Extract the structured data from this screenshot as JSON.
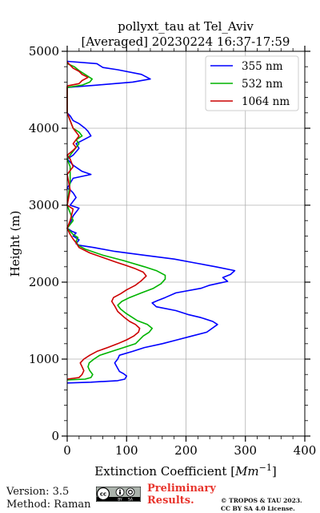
{
  "chart_data": {
    "type": "line",
    "title_line1": "pollyxt_tau at Tel_Aviv",
    "title_line2": "[Averaged] 20230224 16:37-17:59",
    "xlabel_text": "Extinction Coefficient [",
    "xlabel_unit": "Mm",
    "xlabel_exp": "−1",
    "xlabel_close": "]",
    "ylabel": "Height (m)",
    "xlim": [
      0,
      400
    ],
    "ylim": [
      0,
      5000
    ],
    "xticks": [
      0,
      100,
      200,
      300,
      400
    ],
    "yticks": [
      0,
      1000,
      2000,
      3000,
      4000,
      5000
    ],
    "grid": true,
    "legend_position": "top-right",
    "series": [
      {
        "name": "355 nm",
        "color": "#0000ff",
        "points": [
          [
            0,
            690
          ],
          [
            40,
            700
          ],
          [
            85,
            720
          ],
          [
            97,
            740
          ],
          [
            100,
            780
          ],
          [
            95,
            810
          ],
          [
            88,
            840
          ],
          [
            85,
            880
          ],
          [
            80,
            950
          ],
          [
            85,
            1000
          ],
          [
            88,
            1050
          ],
          [
            110,
            1100
          ],
          [
            130,
            1150
          ],
          [
            160,
            1200
          ],
          [
            185,
            1250
          ],
          [
            210,
            1300
          ],
          [
            235,
            1350
          ],
          [
            253,
            1450
          ],
          [
            245,
            1490
          ],
          [
            225,
            1540
          ],
          [
            203,
            1580
          ],
          [
            183,
            1630
          ],
          [
            150,
            1680
          ],
          [
            143,
            1730
          ],
          [
            152,
            1760
          ],
          [
            165,
            1800
          ],
          [
            183,
            1860
          ],
          [
            225,
            1920
          ],
          [
            240,
            1960
          ],
          [
            270,
            2010
          ],
          [
            262,
            2060
          ],
          [
            275,
            2100
          ],
          [
            282,
            2150
          ],
          [
            250,
            2200
          ],
          [
            215,
            2250
          ],
          [
            180,
            2300
          ],
          [
            130,
            2350
          ],
          [
            80,
            2400
          ],
          [
            45,
            2450
          ],
          [
            20,
            2480
          ],
          [
            15,
            2500
          ],
          [
            20,
            2550
          ],
          [
            10,
            2600
          ],
          [
            15,
            2640
          ],
          [
            8,
            2660
          ],
          [
            0,
            2700
          ],
          [
            5,
            2760
          ],
          [
            10,
            2860
          ],
          [
            20,
            2960
          ],
          [
            5,
            3000
          ],
          [
            15,
            3100
          ],
          [
            10,
            3160
          ],
          [
            5,
            3200
          ],
          [
            0,
            3220
          ],
          [
            10,
            3350
          ],
          [
            40,
            3400
          ],
          [
            25,
            3440
          ],
          [
            10,
            3520
          ],
          [
            0,
            3600
          ],
          [
            10,
            3650
          ],
          [
            20,
            3740
          ],
          [
            15,
            3800
          ],
          [
            30,
            3860
          ],
          [
            40,
            3900
          ],
          [
            35,
            3960
          ],
          [
            30,
            4000
          ],
          [
            20,
            4060
          ],
          [
            10,
            4100
          ],
          [
            5,
            4160
          ],
          [
            0,
            4200
          ],
          [
            0,
            4530
          ],
          [
            50,
            4560
          ],
          [
            110,
            4600
          ],
          [
            140,
            4640
          ],
          [
            125,
            4700
          ],
          [
            85,
            4760
          ],
          [
            60,
            4790
          ],
          [
            50,
            4840
          ],
          [
            0,
            4870
          ]
        ]
      },
      {
        "name": "532 nm",
        "color": "#00b400",
        "points": [
          [
            0,
            730
          ],
          [
            30,
            740
          ],
          [
            40,
            760
          ],
          [
            43,
            800
          ],
          [
            38,
            850
          ],
          [
            35,
            900
          ],
          [
            37,
            950
          ],
          [
            45,
            1000
          ],
          [
            55,
            1050
          ],
          [
            75,
            1100
          ],
          [
            95,
            1150
          ],
          [
            115,
            1200
          ],
          [
            128,
            1300
          ],
          [
            138,
            1350
          ],
          [
            143,
            1400
          ],
          [
            135,
            1450
          ],
          [
            118,
            1500
          ],
          [
            110,
            1540
          ],
          [
            98,
            1600
          ],
          [
            90,
            1650
          ],
          [
            85,
            1700
          ],
          [
            92,
            1750
          ],
          [
            105,
            1800
          ],
          [
            125,
            1860
          ],
          [
            145,
            1920
          ],
          [
            158,
            1980
          ],
          [
            165,
            2040
          ],
          [
            165,
            2090
          ],
          [
            150,
            2150
          ],
          [
            130,
            2200
          ],
          [
            95,
            2280
          ],
          [
            60,
            2350
          ],
          [
            30,
            2430
          ],
          [
            18,
            2480
          ],
          [
            15,
            2530
          ],
          [
            18,
            2580
          ],
          [
            10,
            2620
          ],
          [
            5,
            2660
          ],
          [
            0,
            2700
          ],
          [
            10,
            2800
          ],
          [
            5,
            2900
          ],
          [
            0,
            3000
          ],
          [
            5,
            3300
          ],
          [
            5,
            3500
          ],
          [
            0,
            3600
          ],
          [
            10,
            3700
          ],
          [
            20,
            3800
          ],
          [
            15,
            3850
          ],
          [
            25,
            3900
          ],
          [
            20,
            3950
          ],
          [
            10,
            4000
          ],
          [
            5,
            4100
          ],
          [
            0,
            4200
          ],
          [
            0,
            4530
          ],
          [
            25,
            4560
          ],
          [
            38,
            4600
          ],
          [
            42,
            4640
          ],
          [
            30,
            4700
          ],
          [
            20,
            4750
          ],
          [
            12,
            4800
          ],
          [
            0,
            4840
          ]
        ]
      },
      {
        "name": "1064 nm",
        "color": "#cc0000",
        "points": [
          [
            0,
            740
          ],
          [
            20,
            760
          ],
          [
            25,
            800
          ],
          [
            28,
            850
          ],
          [
            25,
            900
          ],
          [
            22,
            950
          ],
          [
            28,
            1000
          ],
          [
            38,
            1050
          ],
          [
            50,
            1100
          ],
          [
            68,
            1150
          ],
          [
            85,
            1200
          ],
          [
            100,
            1250
          ],
          [
            112,
            1300
          ],
          [
            120,
            1350
          ],
          [
            122,
            1400
          ],
          [
            115,
            1450
          ],
          [
            105,
            1490
          ],
          [
            95,
            1550
          ],
          [
            85,
            1620
          ],
          [
            80,
            1690
          ],
          [
            75,
            1750
          ],
          [
            78,
            1800
          ],
          [
            90,
            1850
          ],
          [
            100,
            1900
          ],
          [
            115,
            1960
          ],
          [
            125,
            2020
          ],
          [
            133,
            2080
          ],
          [
            128,
            2130
          ],
          [
            113,
            2180
          ],
          [
            98,
            2220
          ],
          [
            82,
            2260
          ],
          [
            60,
            2320
          ],
          [
            38,
            2380
          ],
          [
            20,
            2450
          ],
          [
            15,
            2510
          ],
          [
            10,
            2560
          ],
          [
            5,
            2620
          ],
          [
            0,
            2700
          ],
          [
            5,
            2800
          ],
          [
            10,
            2950
          ],
          [
            0,
            3000
          ],
          [
            5,
            3200
          ],
          [
            0,
            3400
          ],
          [
            10,
            3500
          ],
          [
            5,
            3600
          ],
          [
            0,
            3650
          ],
          [
            8,
            3700
          ],
          [
            15,
            3750
          ],
          [
            10,
            3800
          ],
          [
            15,
            3850
          ],
          [
            20,
            3900
          ],
          [
            15,
            3950
          ],
          [
            10,
            4000
          ],
          [
            5,
            4100
          ],
          [
            0,
            4200
          ],
          [
            0,
            4550
          ],
          [
            20,
            4580
          ],
          [
            25,
            4620
          ],
          [
            35,
            4660
          ],
          [
            25,
            4700
          ],
          [
            20,
            4740
          ],
          [
            10,
            4780
          ],
          [
            5,
            4820
          ],
          [
            0,
            4860
          ]
        ]
      }
    ]
  },
  "footer": {
    "version": "Version: 3.5",
    "method": "Method: Raman",
    "preliminary_line1": "Preliminary",
    "preliminary_line2": "Results.",
    "copyright_line1": "© TROPOS & TAU 2023.",
    "copyright_line2": "CC BY SA 4.0 License."
  },
  "cc_logo": {
    "text_cc": "cc",
    "text_by": "BY",
    "text_sa": "SA"
  }
}
